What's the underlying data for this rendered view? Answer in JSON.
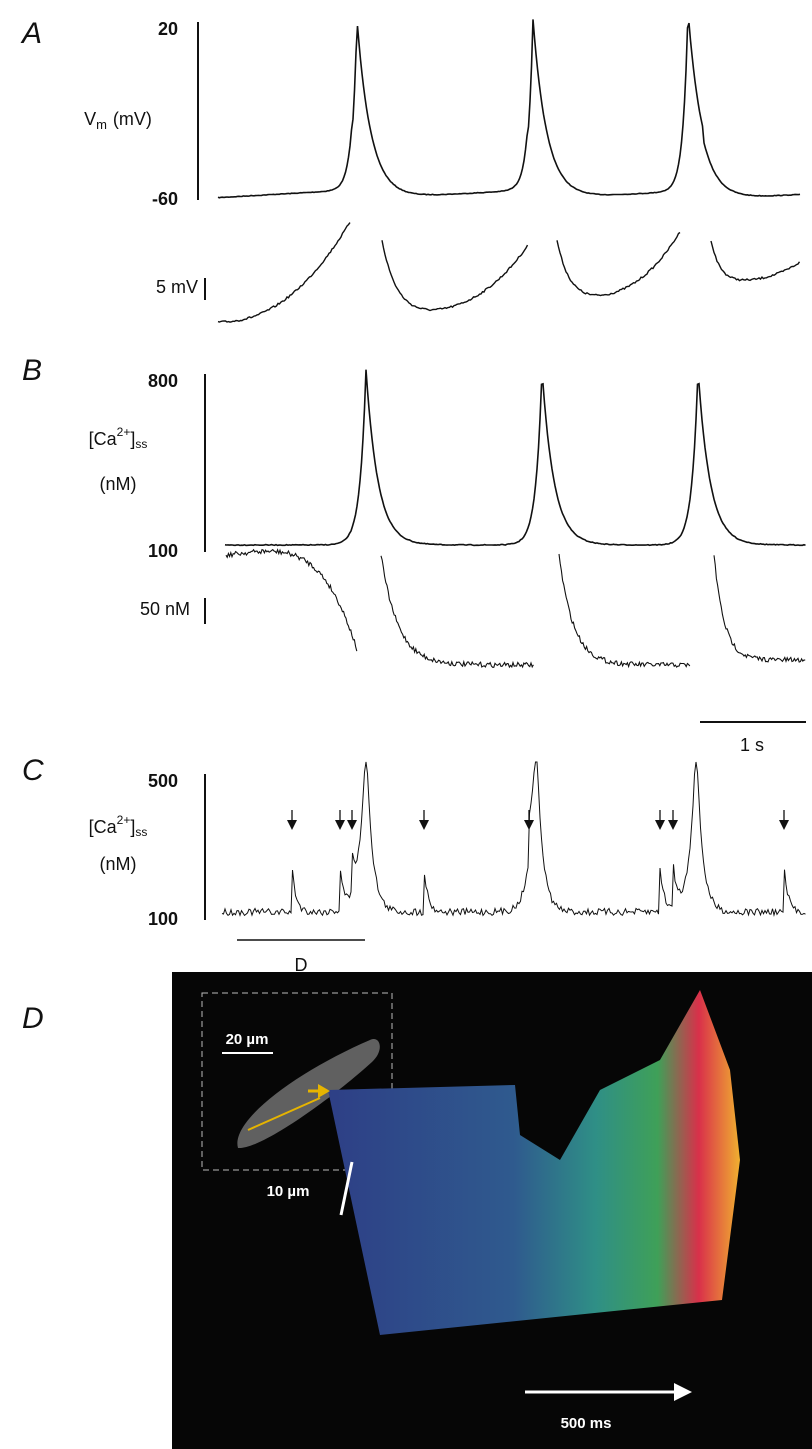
{
  "panels": [
    {
      "label": "A",
      "top_tick": "20",
      "bottom_tick": "-60",
      "axis_label": "V",
      "axis_label_sub": "m",
      "axis_unit": "(mV)",
      "scale_bar": "5 mV"
    },
    {
      "label": "B",
      "top_tick": "800",
      "bottom_tick": "100",
      "axis_label": "[Ca",
      "axis_label_sup": "2+",
      "axis_label_close": "]",
      "axis_label_sub": "ss",
      "axis_unit": "(nM)",
      "scale_bar": "50 nM",
      "time_bar": "1 s"
    },
    {
      "label": "C",
      "top_tick": "500",
      "bottom_tick": "100",
      "axis_label": "[Ca",
      "axis_label_sup": "2+",
      "axis_label_close": "]",
      "axis_label_sub": "ss",
      "axis_unit": "(nM)",
      "segment_label": "D"
    },
    {
      "label": "D",
      "inset_scale": "20 µm",
      "space_scale": "10 µm",
      "time_scale": "500 ms"
    }
  ]
}
